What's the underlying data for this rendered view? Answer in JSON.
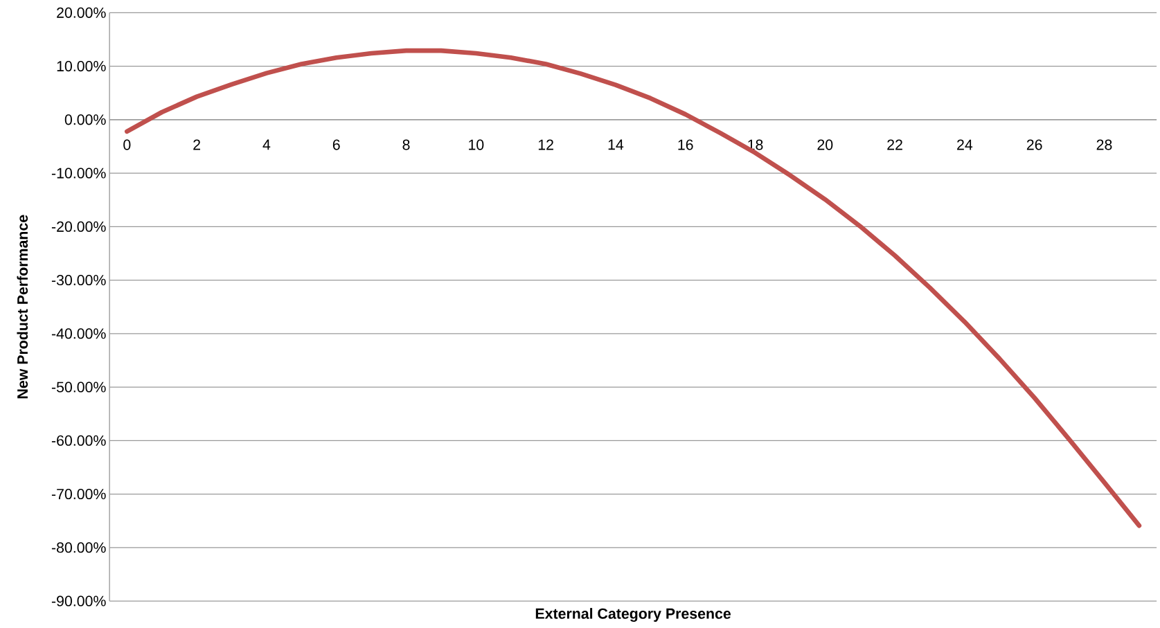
{
  "chart_data": {
    "type": "line",
    "xlabel": "External Category Presence",
    "ylabel": "New Product Performance",
    "categories": [
      "0",
      null,
      "2",
      null,
      "4",
      null,
      "6",
      null,
      "8",
      null,
      "10",
      null,
      "12",
      null,
      "14",
      null,
      "16",
      null,
      "18",
      null,
      "20",
      null,
      "22",
      null,
      "24",
      null,
      "26",
      null,
      "28",
      null
    ],
    "series": [
      {
        "color": "#c0504d",
        "values": [
          -2.2,
          1.4,
          4.3,
          6.6,
          8.7,
          10.4,
          11.6,
          12.4,
          12.9,
          12.9,
          12.4,
          11.6,
          10.4,
          8.6,
          6.5,
          4.0,
          1.0,
          -2.5,
          -6.2,
          -10.4,
          -14.9,
          -19.9,
          -25.4,
          -31.4,
          -37.8,
          -44.7,
          -52.0,
          -59.8,
          -67.8,
          -75.9
        ]
      }
    ],
    "ylim": [
      -90,
      20
    ],
    "yticks": [
      {
        "value": 20,
        "label": "20.00%"
      },
      {
        "value": 10,
        "label": "10.00%"
      },
      {
        "value": 0,
        "label": "0.00%"
      },
      {
        "value": -10,
        "label": "-10.00%"
      },
      {
        "value": -20,
        "label": "-20.00%"
      },
      {
        "value": -30,
        "label": "-30.00%"
      },
      {
        "value": -40,
        "label": "-40.00%"
      },
      {
        "value": -50,
        "label": "-50.00%"
      },
      {
        "value": -60,
        "label": "-60.00%"
      },
      {
        "value": -70,
        "label": "-70.00%"
      },
      {
        "value": -80,
        "label": "-80.00%"
      },
      {
        "value": -90,
        "label": "-90.00%"
      }
    ],
    "grid": "y"
  }
}
